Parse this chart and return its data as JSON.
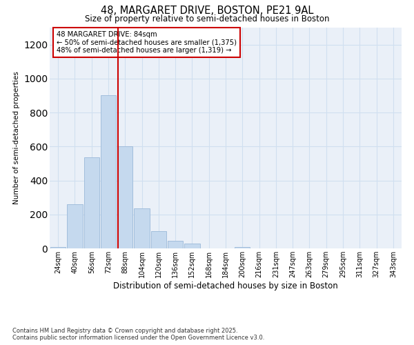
{
  "title1": "48, MARGARET DRIVE, BOSTON, PE21 9AL",
  "title2": "Size of property relative to semi-detached houses in Boston",
  "xlabel": "Distribution of semi-detached houses by size in Boston",
  "ylabel": "Number of semi-detached properties",
  "categories": [
    "24sqm",
    "40sqm",
    "56sqm",
    "72sqm",
    "88sqm",
    "104sqm",
    "120sqm",
    "136sqm",
    "152sqm",
    "168sqm",
    "184sqm",
    "200sqm",
    "216sqm",
    "231sqm",
    "247sqm",
    "263sqm",
    "279sqm",
    "295sqm",
    "311sqm",
    "327sqm",
    "343sqm"
  ],
  "values": [
    10,
    260,
    535,
    900,
    600,
    235,
    100,
    45,
    30,
    0,
    0,
    10,
    0,
    0,
    0,
    0,
    0,
    0,
    0,
    0,
    0
  ],
  "bar_color": "#c5d9ee",
  "bar_edge_color": "#9ab8d8",
  "grid_color": "#d0dff0",
  "bg_color": "#eaf0f8",
  "vline_color": "#cc0000",
  "vline_x_index": 4,
  "annotation_title": "48 MARGARET DRIVE: 84sqm",
  "annotation_line2": "← 50% of semi-detached houses are smaller (1,375)",
  "annotation_line3": "48% of semi-detached houses are larger (1,319) →",
  "annotation_box_color": "#ffffff",
  "annotation_box_edge": "#cc0000",
  "footer1": "Contains HM Land Registry data © Crown copyright and database right 2025.",
  "footer2": "Contains public sector information licensed under the Open Government Licence v3.0.",
  "ylim": [
    0,
    1300
  ],
  "yticks": [
    0,
    200,
    400,
    600,
    800,
    1000,
    1200
  ]
}
